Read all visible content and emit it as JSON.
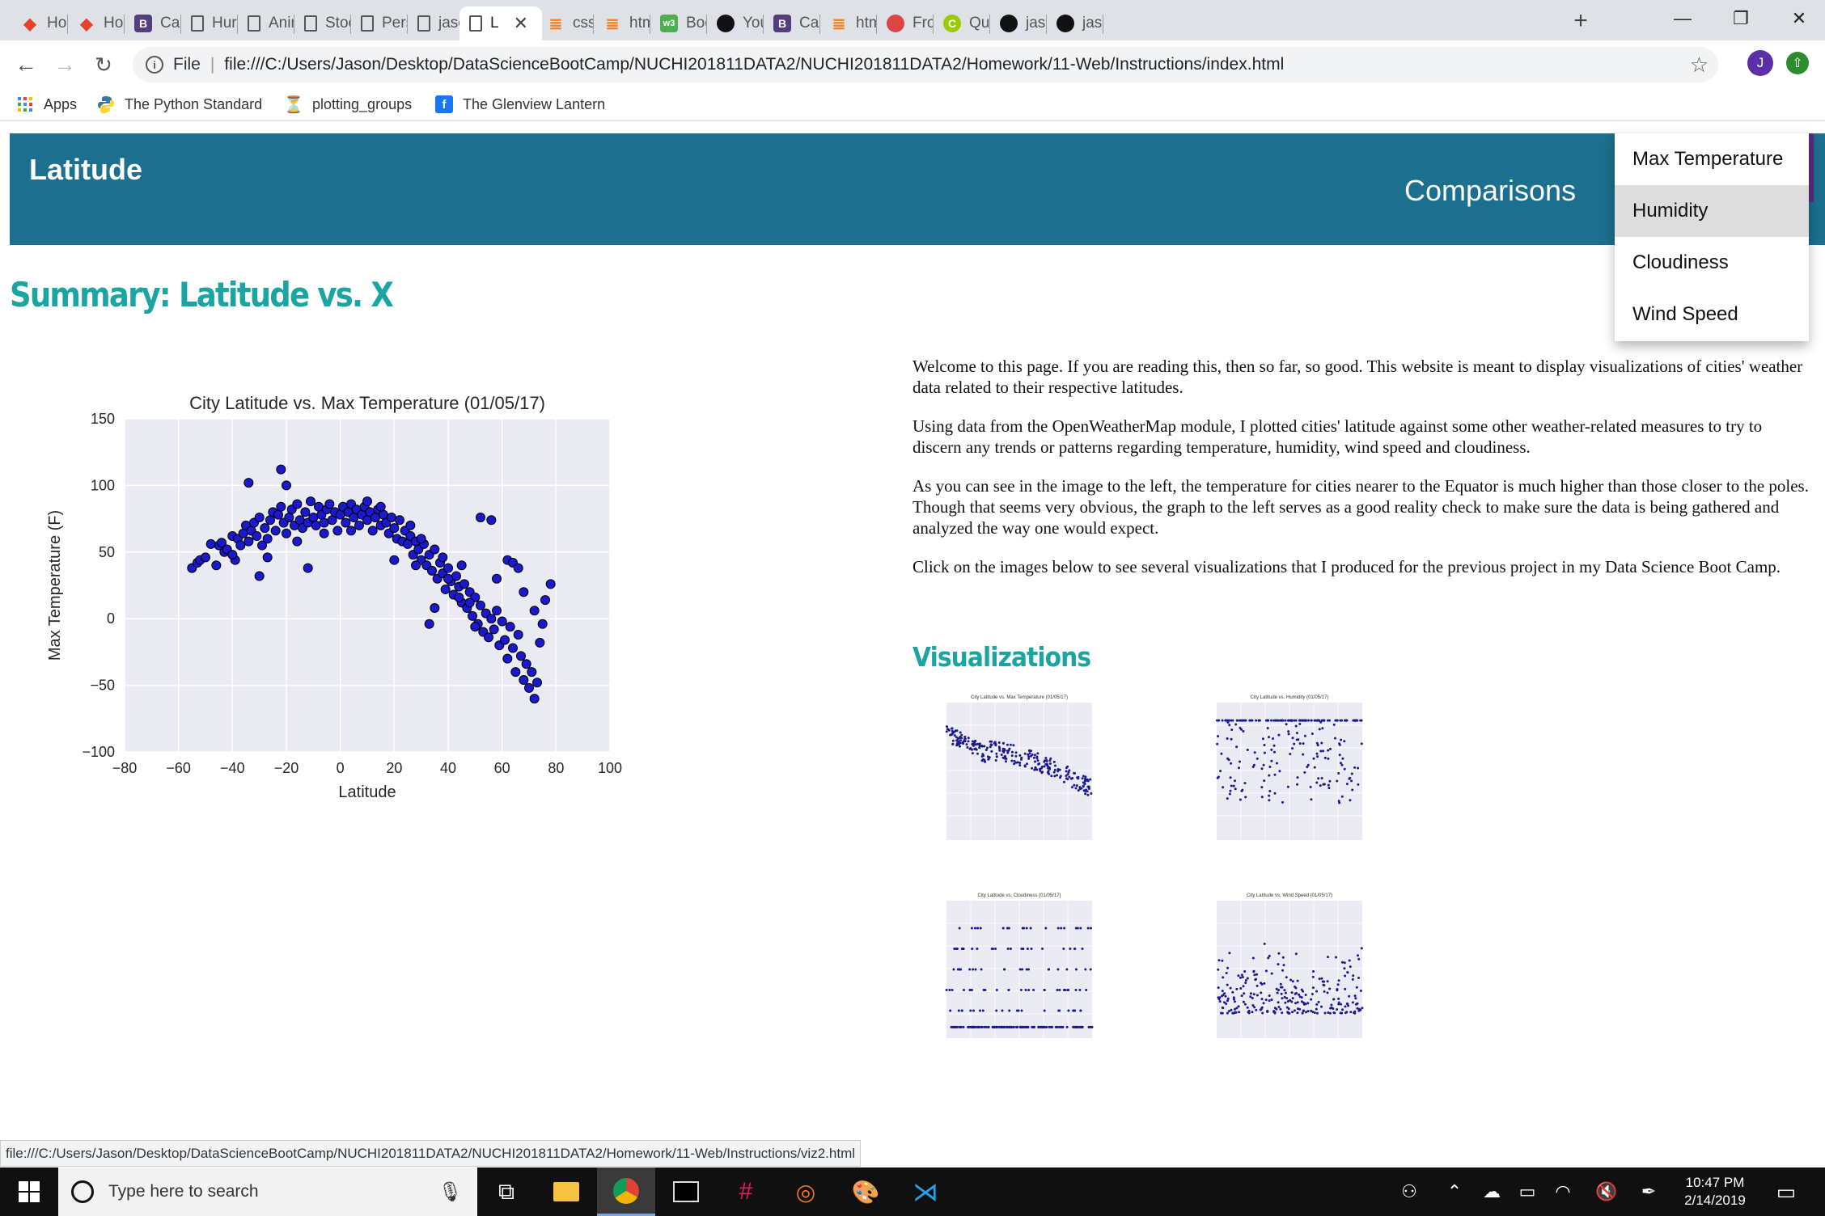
{
  "browser": {
    "tabs": [
      {
        "label": "Hom",
        "icon": "gitlab-icon",
        "color": "#e24329"
      },
      {
        "label": "Hom",
        "icon": "gitlab-icon",
        "color": "#e24329"
      },
      {
        "label": "Card",
        "icon": "bootstrap-icon",
        "color": "#563d7c"
      },
      {
        "label": "Hurri",
        "icon": "page-icon",
        "color": ""
      },
      {
        "label": "Anim",
        "icon": "page-icon",
        "color": ""
      },
      {
        "label": "Stock",
        "icon": "page-icon",
        "color": ""
      },
      {
        "label": "Perso",
        "icon": "page-icon",
        "color": ""
      },
      {
        "label": "jason",
        "icon": "page-icon",
        "color": ""
      },
      {
        "label": "L",
        "icon": "page-icon",
        "color": "",
        "active": true
      },
      {
        "label": "css -",
        "icon": "stackoverflow-icon",
        "color": "#f48024"
      },
      {
        "label": "html",
        "icon": "stackoverflow-icon",
        "color": "#f48024"
      },
      {
        "label": "Boot",
        "icon": "w3schools-icon",
        "color": "#4caf50"
      },
      {
        "label": "Your",
        "icon": "github-icon",
        "color": "#111"
      },
      {
        "label": "Card",
        "icon": "bootstrap-icon",
        "color": "#563d7c"
      },
      {
        "label": "html",
        "icon": "stackoverflow-icon",
        "color": "#f48024"
      },
      {
        "label": "From",
        "icon": "blob-icon",
        "color": "#d44"
      },
      {
        "label": "Quick",
        "icon": "c-icon",
        "color": "#9c0"
      },
      {
        "label": "jason",
        "icon": "github-icon",
        "color": "#111"
      },
      {
        "label": "jason",
        "icon": "github-icon",
        "color": "#111"
      }
    ],
    "new_tab": "+",
    "window_controls": {
      "minimize": "—",
      "maximize": "❐",
      "close": "✕"
    },
    "address": {
      "prefix": "File",
      "url": "file:///C:/Users/Jason/Desktop/DataScienceBootCamp/NUCHI201811DATA2/NUCHI201811DATA2/Homework/11-Web/Instructions/index.html"
    },
    "profile_initial": "J",
    "bookmarks": [
      {
        "label": "Apps",
        "icon": "apps-grid-icon"
      },
      {
        "label": "The Python Standard",
        "icon": "python-icon"
      },
      {
        "label": "plotting_groups",
        "icon": "hourglass-icon"
      },
      {
        "label": "The Glenview Lantern",
        "icon": "facebook-icon"
      }
    ],
    "status_url": "file:///C:/Users/Jason/Desktop/DataScienceBootCamp/NUCHI201811DATA2/NUCHI201811DATA2/Homework/11-Web/Instructions/viz2.html"
  },
  "page": {
    "brand": "Latitude",
    "nav_comparisons": "Comparisons",
    "dropdown_items": [
      "Max Temperature",
      "Humidity",
      "Cloudiness",
      "Wind Speed"
    ],
    "summary_title": "Summary: Latitude vs. X",
    "intro_paragraphs": [
      "Welcome to this page. If you are reading this, then so far, so good. This website is meant to display visualizations of cities' weather data related to their respective latitudes.",
      "Using data from the OpenWeatherMap module, I plotted cities' latitude against some other weather-related measures to try to discern any trends or patterns regarding temperature, humidity, wind speed and cloudiness.",
      "As you can see in the image to the left, the temperature for cities nearer to the Equator is much higher than those closer to the poles. Though that seems very obvious, the graph to the left serves as a good reality check to make sure the data is being gathered and analyzed the way one would expect.",
      "Click on the images below to see several visualizations that I produced for the previous project in my Data Science Boot Camp."
    ],
    "visualizations_title": "Visualizations"
  },
  "chart_data": {
    "type": "scatter",
    "title": "City Latitude vs. Max Temperature (01/05/17)",
    "xlabel": "Latitude",
    "ylabel": "Max Temperature (F)",
    "xlim": [
      -80,
      100
    ],
    "ylim": [
      -100,
      150
    ],
    "xticks": [
      "−80",
      "−60",
      "−40",
      "−20",
      "0",
      "20",
      "40",
      "60",
      "80",
      "100"
    ],
    "yticks": [
      "150",
      "100",
      "50",
      "0",
      "−50",
      "−100"
    ],
    "grid": true,
    "point_color": "#1a1acc",
    "points": [
      [
        -55,
        38
      ],
      [
        -53,
        42
      ],
      [
        -52,
        44
      ],
      [
        -50,
        46
      ],
      [
        -46,
        40
      ],
      [
        -45,
        55
      ],
      [
        -44,
        57
      ],
      [
        -43,
        50
      ],
      [
        -42,
        52
      ],
      [
        -40,
        62
      ],
      [
        -39,
        44
      ],
      [
        -38,
        60
      ],
      [
        -37,
        55
      ],
      [
        -36,
        64
      ],
      [
        -35,
        70
      ],
      [
        -34,
        58
      ],
      [
        -33,
        66
      ],
      [
        -32,
        72
      ],
      [
        -31,
        62
      ],
      [
        -30,
        76
      ],
      [
        -29,
        55
      ],
      [
        -28,
        68
      ],
      [
        -27,
        60
      ],
      [
        -26,
        74
      ],
      [
        -25,
        80
      ],
      [
        -24,
        66
      ],
      [
        -23,
        78
      ],
      [
        -22,
        84
      ],
      [
        -21,
        72
      ],
      [
        -20,
        64
      ],
      [
        -19,
        76
      ],
      [
        -18,
        82
      ],
      [
        -17,
        70
      ],
      [
        -16,
        86
      ],
      [
        -15,
        74
      ],
      [
        -14,
        68
      ],
      [
        -13,
        80
      ],
      [
        -12,
        72
      ],
      [
        -11,
        88
      ],
      [
        -10,
        76
      ],
      [
        -9,
        70
      ],
      [
        -8,
        84
      ],
      [
        -7,
        78
      ],
      [
        -6,
        72
      ],
      [
        -5,
        82
      ],
      [
        -4,
        86
      ],
      [
        -3,
        74
      ],
      [
        -2,
        80
      ],
      [
        -1,
        66
      ],
      [
        0,
        78
      ],
      [
        1,
        84
      ],
      [
        2,
        72
      ],
      [
        3,
        80
      ],
      [
        4,
        86
      ],
      [
        5,
        76
      ],
      [
        6,
        82
      ],
      [
        7,
        70
      ],
      [
        8,
        78
      ],
      [
        9,
        84
      ],
      [
        10,
        74
      ],
      [
        11,
        80
      ],
      [
        12,
        66
      ],
      [
        13,
        76
      ],
      [
        14,
        82
      ],
      [
        15,
        70
      ],
      [
        16,
        78
      ],
      [
        17,
        72
      ],
      [
        18,
        64
      ],
      [
        19,
        76
      ],
      [
        20,
        68
      ],
      [
        21,
        60
      ],
      [
        22,
        74
      ],
      [
        23,
        58
      ],
      [
        24,
        66
      ],
      [
        25,
        56
      ],
      [
        26,
        62
      ],
      [
        27,
        48
      ],
      [
        28,
        58
      ],
      [
        29,
        52
      ],
      [
        30,
        44
      ],
      [
        31,
        56
      ],
      [
        32,
        40
      ],
      [
        33,
        48
      ],
      [
        34,
        36
      ],
      [
        35,
        52
      ],
      [
        36,
        30
      ],
      [
        37,
        42
      ],
      [
        38,
        34
      ],
      [
        39,
        22
      ],
      [
        40,
        38
      ],
      [
        41,
        28
      ],
      [
        42,
        18
      ],
      [
        43,
        32
      ],
      [
        44,
        24
      ],
      [
        45,
        12
      ],
      [
        46,
        26
      ],
      [
        47,
        8
      ],
      [
        48,
        20
      ],
      [
        49,
        2
      ],
      [
        50,
        16
      ],
      [
        51,
        -4
      ],
      [
        52,
        10
      ],
      [
        53,
        -10
      ],
      [
        54,
        4
      ],
      [
        55,
        -14
      ],
      [
        56,
        0
      ],
      [
        57,
        -8
      ],
      [
        58,
        6
      ],
      [
        59,
        -20
      ],
      [
        60,
        -2
      ],
      [
        61,
        -16
      ],
      [
        62,
        -30
      ],
      [
        63,
        -6
      ],
      [
        64,
        -22
      ],
      [
        65,
        -40
      ],
      [
        66,
        -12
      ],
      [
        67,
        -28
      ],
      [
        68,
        -46
      ],
      [
        69,
        -34
      ],
      [
        70,
        -52
      ],
      [
        71,
        -40
      ],
      [
        72,
        -60
      ],
      [
        73,
        -48
      ],
      [
        74,
        -18
      ],
      [
        75,
        -4
      ],
      [
        76,
        14
      ],
      [
        78,
        26
      ],
      [
        -30,
        32
      ],
      [
        -27,
        46
      ],
      [
        -12,
        38
      ],
      [
        -20,
        100
      ],
      [
        -34,
        102
      ],
      [
        -22,
        112
      ],
      [
        10,
        88
      ],
      [
        15,
        84
      ],
      [
        30,
        60
      ],
      [
        45,
        40
      ],
      [
        52,
        76
      ],
      [
        56,
        74
      ],
      [
        62,
        44
      ],
      [
        58,
        30
      ],
      [
        64,
        42
      ],
      [
        66,
        38
      ],
      [
        68,
        20
      ],
      [
        72,
        6
      ],
      [
        50,
        -6
      ],
      [
        48,
        12
      ],
      [
        35,
        8
      ],
      [
        33,
        -4
      ],
      [
        40,
        30
      ],
      [
        44,
        16
      ],
      [
        38,
        46
      ],
      [
        26,
        70
      ],
      [
        28,
        40
      ],
      [
        20,
        44
      ],
      [
        -6,
        64
      ],
      [
        4,
        66
      ],
      [
        -16,
        58
      ],
      [
        -40,
        48
      ],
      [
        -48,
        56
      ]
    ]
  },
  "thumbnails": [
    {
      "title": "City Latitude vs. Max Temperature (01/05/17)",
      "kind": "temp"
    },
    {
      "title": "City Latitude vs. Humidity (01/05/17)",
      "kind": "humidity"
    },
    {
      "title": "City Latitude vs. Cloudiness (01/05/17)",
      "kind": "cloud"
    },
    {
      "title": "City Latitude vs. Wind Speed (01/05/17)",
      "kind": "wind"
    }
  ],
  "taskbar": {
    "search_placeholder": "Type here to search",
    "time": "10:47 PM",
    "date": "2/14/2019"
  }
}
